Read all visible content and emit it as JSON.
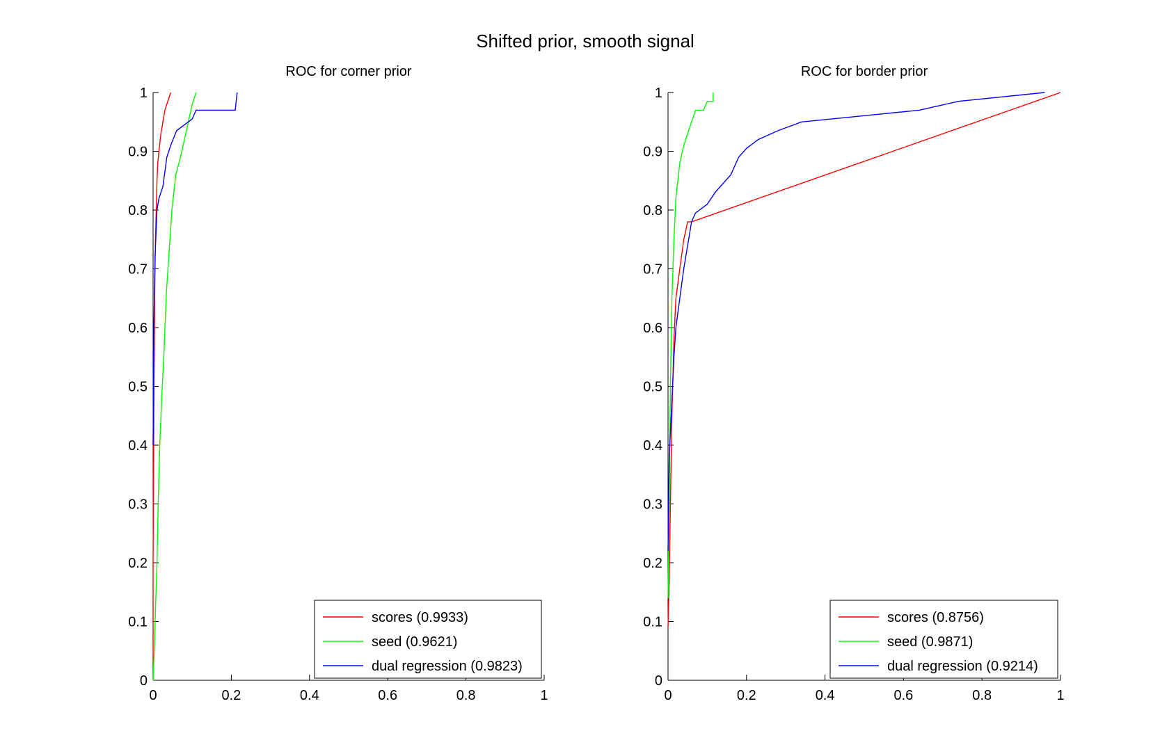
{
  "figure_title": "Shifted prior, smooth signal",
  "colors": {
    "scores": "#ff0000",
    "seed": "#00ff00",
    "dual_regression": "#0000ff"
  },
  "chart_data": [
    {
      "type": "line",
      "title": "ROC for corner prior",
      "xlabel": "",
      "ylabel": "",
      "xlim": [
        0,
        1
      ],
      "ylim": [
        0,
        1
      ],
      "x_ticks": [
        "0",
        "0.2",
        "0.4",
        "0.6",
        "0.8",
        "1"
      ],
      "y_ticks": [
        "0",
        "0.1",
        "0.2",
        "0.3",
        "0.4",
        "0.5",
        "0.6",
        "0.7",
        "0.8",
        "0.9",
        "1"
      ],
      "grid": false,
      "legend_position": "bottom-right",
      "series": [
        {
          "name": "scores (0.9933)",
          "color": "#ff0000",
          "points": [
            [
              0,
              0
            ],
            [
              0,
              0.2
            ],
            [
              0.002,
              0.45
            ],
            [
              0.004,
              0.65
            ],
            [
              0.006,
              0.75
            ],
            [
              0.008,
              0.8
            ],
            [
              0.01,
              0.85
            ],
            [
              0.012,
              0.88
            ],
            [
              0.015,
              0.9
            ],
            [
              0.02,
              0.93
            ],
            [
              0.025,
              0.95
            ],
            [
              0.03,
              0.97
            ],
            [
              0.035,
              0.98
            ],
            [
              0.04,
              0.99
            ],
            [
              0.045,
              1
            ]
          ]
        },
        {
          "name": "seed (0.9621)",
          "color": "#00ff00",
          "points": [
            [
              0,
              0
            ],
            [
              0.003,
              0.05
            ],
            [
              0.006,
              0.12
            ],
            [
              0.01,
              0.2
            ],
            [
              0.013,
              0.3
            ],
            [
              0.017,
              0.4
            ],
            [
              0.022,
              0.48
            ],
            [
              0.028,
              0.56
            ],
            [
              0.034,
              0.66
            ],
            [
              0.04,
              0.72
            ],
            [
              0.048,
              0.8
            ],
            [
              0.058,
              0.86
            ],
            [
              0.07,
              0.89
            ],
            [
              0.08,
              0.92
            ],
            [
              0.09,
              0.95
            ],
            [
              0.1,
              0.98
            ],
            [
              0.11,
              1
            ]
          ]
        },
        {
          "name": "dual regression (0.9823)",
          "color": "#0000ff",
          "points": [
            [
              0,
              0.4
            ],
            [
              0.002,
              0.6
            ],
            [
              0.005,
              0.72
            ],
            [
              0.01,
              0.8
            ],
            [
              0.015,
              0.82
            ],
            [
              0.025,
              0.84
            ],
            [
              0.035,
              0.89
            ],
            [
              0.045,
              0.91
            ],
            [
              0.06,
              0.935
            ],
            [
              0.1,
              0.955
            ],
            [
              0.11,
              0.97
            ],
            [
              0.21,
              0.97
            ],
            [
              0.215,
              1
            ]
          ]
        }
      ]
    },
    {
      "type": "line",
      "title": "ROC for border prior",
      "xlabel": "",
      "ylabel": "",
      "xlim": [
        0,
        1
      ],
      "ylim": [
        0,
        1
      ],
      "x_ticks": [
        "0",
        "0.2",
        "0.4",
        "0.6",
        "0.8",
        "1"
      ],
      "y_ticks": [
        "0",
        "0.1",
        "0.2",
        "0.3",
        "0.4",
        "0.5",
        "0.6",
        "0.7",
        "0.8",
        "0.9",
        "1"
      ],
      "grid": false,
      "legend_position": "bottom-right",
      "series": [
        {
          "name": "scores (0.8756)",
          "color": "#ff0000",
          "points": [
            [
              0,
              0.09
            ],
            [
              0.003,
              0.17
            ],
            [
              0.006,
              0.3
            ],
            [
              0.01,
              0.45
            ],
            [
              0.015,
              0.58
            ],
            [
              0.02,
              0.65
            ],
            [
              0.03,
              0.7
            ],
            [
              0.04,
              0.75
            ],
            [
              0.05,
              0.78
            ],
            [
              0.06,
              0.78
            ],
            [
              1,
              1
            ]
          ]
        },
        {
          "name": "seed (0.9871)",
          "color": "#00ff00",
          "points": [
            [
              0,
              0.14
            ],
            [
              0.003,
              0.3
            ],
            [
              0.006,
              0.5
            ],
            [
              0.01,
              0.65
            ],
            [
              0.015,
              0.75
            ],
            [
              0.02,
              0.82
            ],
            [
              0.03,
              0.88
            ],
            [
              0.04,
              0.91
            ],
            [
              0.05,
              0.93
            ],
            [
              0.06,
              0.95
            ],
            [
              0.07,
              0.97
            ],
            [
              0.09,
              0.97
            ],
            [
              0.1,
              0.985
            ],
            [
              0.115,
              0.985
            ],
            [
              0.115,
              1
            ]
          ]
        },
        {
          "name": "dual regression (0.9214)",
          "color": "#0000ff",
          "points": [
            [
              0,
              0.22
            ],
            [
              0.003,
              0.38
            ],
            [
              0.008,
              0.45
            ],
            [
              0.015,
              0.55
            ],
            [
              0.02,
              0.6
            ],
            [
              0.03,
              0.65
            ],
            [
              0.04,
              0.7
            ],
            [
              0.05,
              0.74
            ],
            [
              0.06,
              0.78
            ],
            [
              0.07,
              0.795
            ],
            [
              0.1,
              0.81
            ],
            [
              0.12,
              0.83
            ],
            [
              0.16,
              0.86
            ],
            [
              0.18,
              0.89
            ],
            [
              0.2,
              0.905
            ],
            [
              0.23,
              0.92
            ],
            [
              0.28,
              0.935
            ],
            [
              0.34,
              0.95
            ],
            [
              0.64,
              0.97
            ],
            [
              0.74,
              0.985
            ],
            [
              0.96,
              1
            ]
          ]
        }
      ]
    }
  ]
}
